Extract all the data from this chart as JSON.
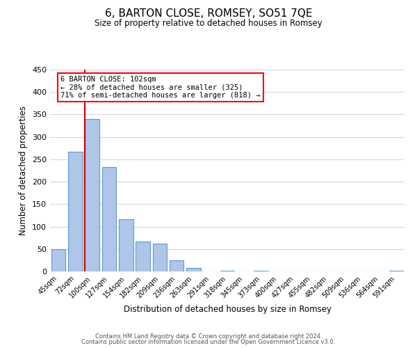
{
  "title": "6, BARTON CLOSE, ROMSEY, SO51 7QE",
  "subtitle": "Size of property relative to detached houses in Romsey",
  "xlabel": "Distribution of detached houses by size in Romsey",
  "ylabel": "Number of detached properties",
  "bar_labels": [
    "45sqm",
    "72sqm",
    "100sqm",
    "127sqm",
    "154sqm",
    "182sqm",
    "209sqm",
    "236sqm",
    "263sqm",
    "291sqm",
    "318sqm",
    "345sqm",
    "373sqm",
    "400sqm",
    "427sqm",
    "455sqm",
    "482sqm",
    "509sqm",
    "536sqm",
    "564sqm",
    "591sqm"
  ],
  "bar_values": [
    50,
    267,
    340,
    232,
    116,
    66,
    62,
    25,
    7,
    0,
    2,
    0,
    1,
    0,
    0,
    0,
    0,
    0,
    0,
    0,
    2
  ],
  "bar_color": "#aec6e8",
  "bar_edge_color": "#5b9bd5",
  "property_line_index": 2,
  "property_line_color": "#cc0000",
  "ylim": [
    0,
    450
  ],
  "yticks": [
    0,
    50,
    100,
    150,
    200,
    250,
    300,
    350,
    400,
    450
  ],
  "annotation_title": "6 BARTON CLOSE: 102sqm",
  "annotation_line1": "← 28% of detached houses are smaller (325)",
  "annotation_line2": "71% of semi-detached houses are larger (818) →",
  "footer_line1": "Contains HM Land Registry data © Crown copyright and database right 2024.",
  "footer_line2": "Contains public sector information licensed under the Open Government Licence v3.0.",
  "background_color": "#ffffff",
  "grid_color": "#d0d8e8"
}
